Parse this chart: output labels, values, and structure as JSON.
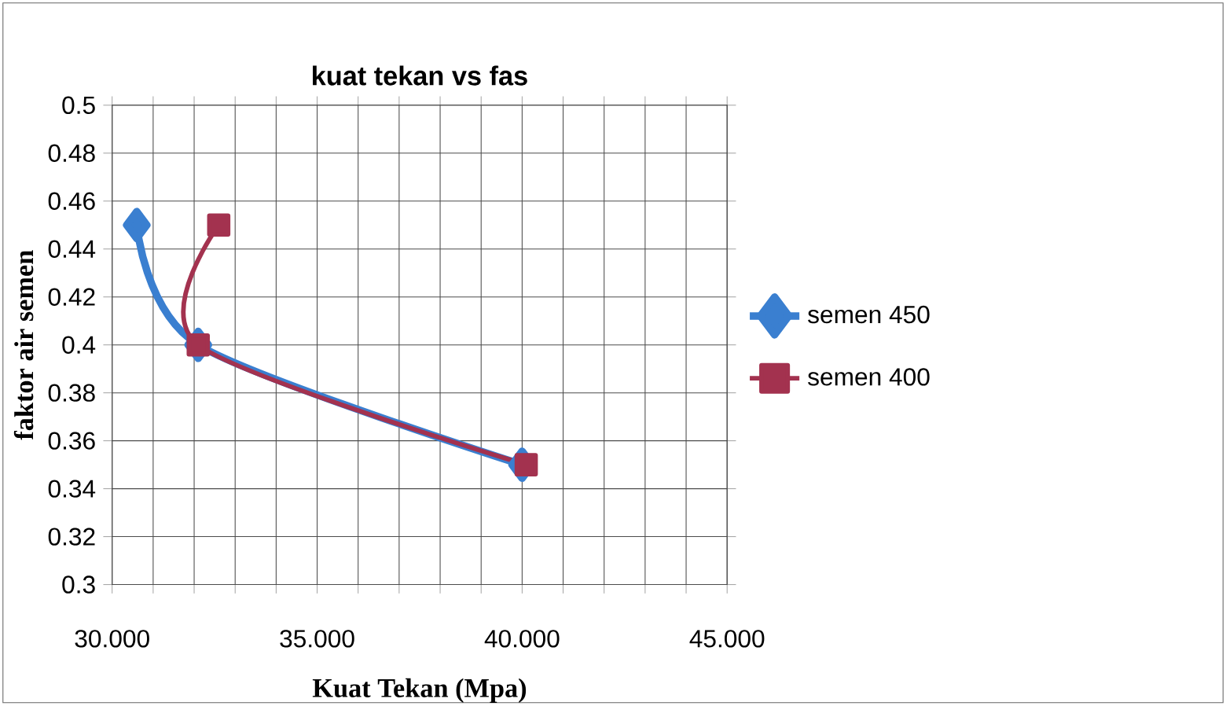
{
  "chart_data": {
    "type": "line",
    "title": "kuat tekan vs fas",
    "xlabel": "Kuat Tekan (Mpa)",
    "ylabel": "faktor  air  semen",
    "xlim": [
      30,
      45
    ],
    "xticks": [
      {
        "value": 30,
        "label": "30.000"
      },
      {
        "value": 31,
        "label": null
      },
      {
        "value": 32,
        "label": null
      },
      {
        "value": 33,
        "label": null
      },
      {
        "value": 34,
        "label": null
      },
      {
        "value": 35,
        "label": "35.000"
      },
      {
        "value": 36,
        "label": null
      },
      {
        "value": 37,
        "label": null
      },
      {
        "value": 38,
        "label": null
      },
      {
        "value": 39,
        "label": null
      },
      {
        "value": 40,
        "label": "40.000"
      },
      {
        "value": 41,
        "label": null
      },
      {
        "value": 42,
        "label": null
      },
      {
        "value": 43,
        "label": null
      },
      {
        "value": 44,
        "label": null
      },
      {
        "value": 45,
        "label": "45.000"
      }
    ],
    "ylim": [
      0.3,
      0.5
    ],
    "yticks": [
      0.3,
      0.32,
      0.34,
      0.36,
      0.38,
      0.4,
      0.42,
      0.44,
      0.46,
      0.48,
      0.5
    ],
    "grid": true,
    "legend": "right",
    "series": [
      {
        "name": "semen 450",
        "color": "#3a7fd0",
        "marker": "diamond",
        "x": [
          30.6,
          32.1,
          40.0
        ],
        "values": [
          0.45,
          0.4,
          0.35
        ]
      },
      {
        "name": "semen 400",
        "color": "#a3324f",
        "marker": "square",
        "x": [
          32.6,
          32.1,
          40.1
        ],
        "values": [
          0.45,
          0.4,
          0.35
        ]
      }
    ]
  }
}
